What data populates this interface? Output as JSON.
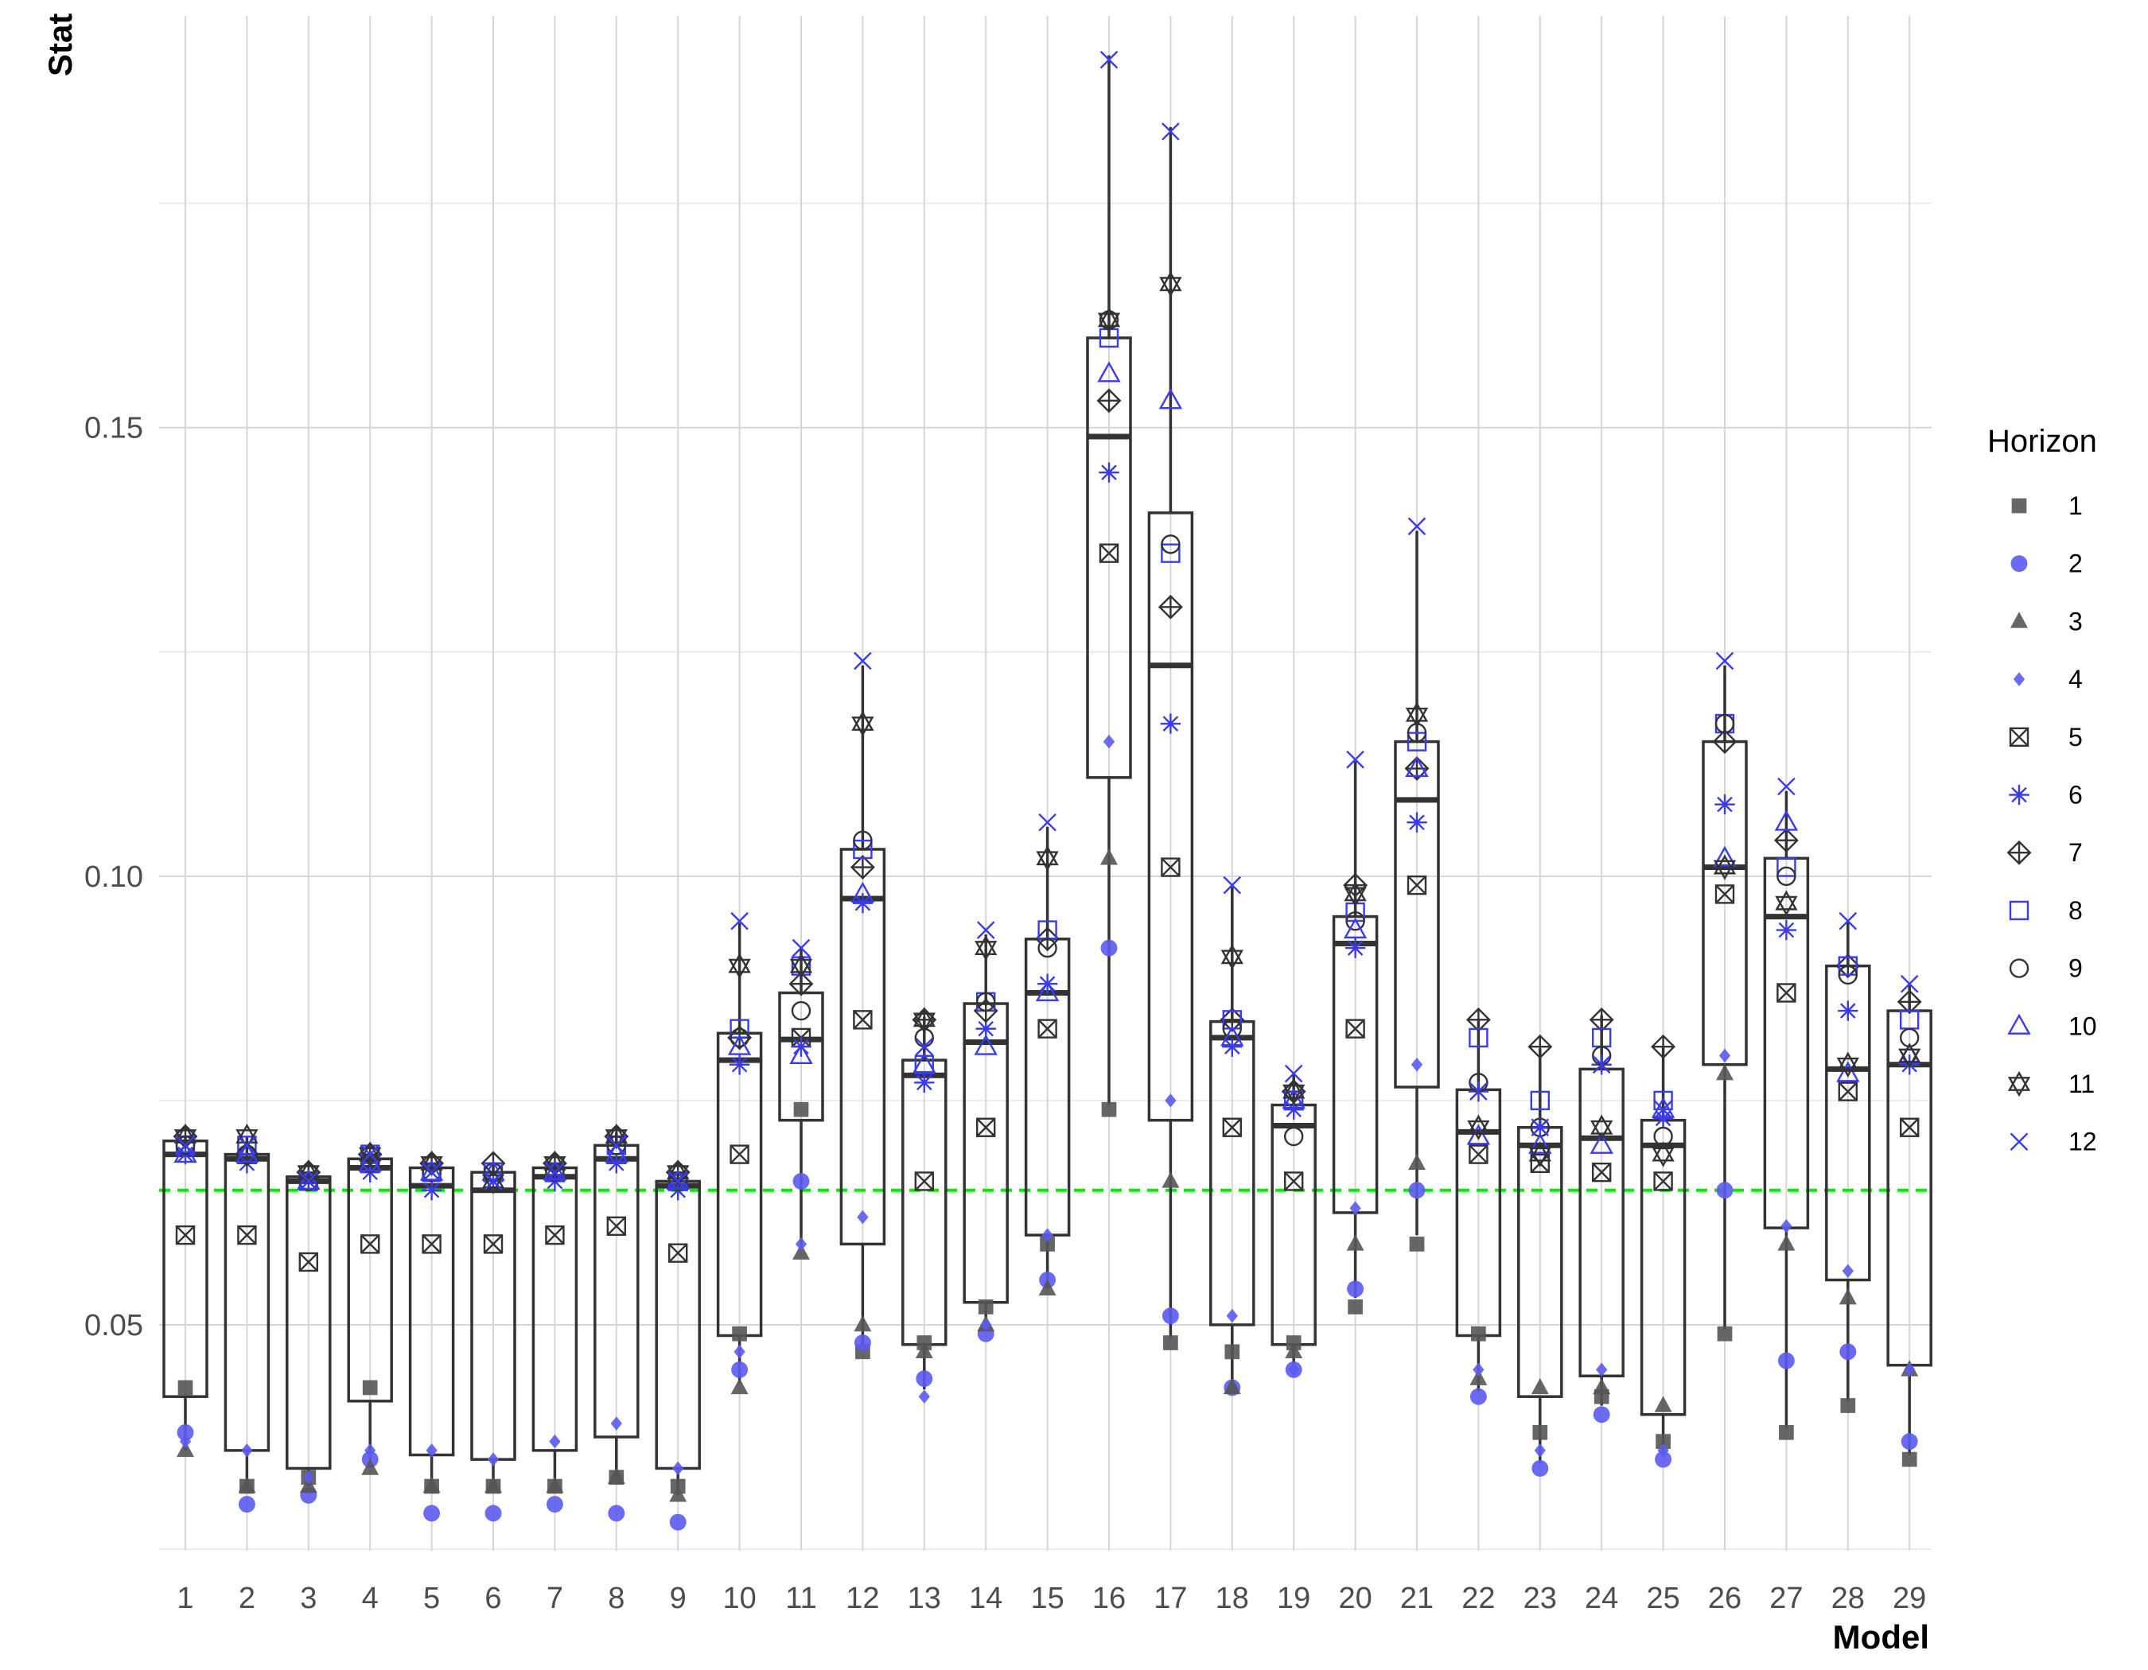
{
  "chart_data": {
    "type": "boxplot",
    "xlabel": "Model",
    "ylabel": "Stat",
    "ylim": [
      0.025,
      0.195
    ],
    "y_ticks": [
      0.05,
      0.1,
      0.15
    ],
    "y_tick_labels": [
      "0.05",
      "0.10",
      "0.15"
    ],
    "grid": true,
    "reference_line": {
      "y": 0.065,
      "color": "#00ee00",
      "style": "dashed"
    },
    "categories": [
      "1",
      "2",
      "3",
      "4",
      "5",
      "6",
      "7",
      "8",
      "9",
      "10",
      "11",
      "12",
      "13",
      "14",
      "15",
      "16",
      "17",
      "18",
      "19",
      "20",
      "21",
      "22",
      "23",
      "24",
      "25",
      "26",
      "27",
      "28",
      "29"
    ],
    "legend": {
      "title": "Horizon",
      "position": "right",
      "entries": [
        "1",
        "2",
        "3",
        "4",
        "5",
        "6",
        "7",
        "8",
        "9",
        "10",
        "11",
        "12"
      ]
    },
    "horizon_styles": [
      {
        "shape": "square-filled",
        "color": "#555555"
      },
      {
        "shape": "circle-filled",
        "color": "#5b5bf0"
      },
      {
        "shape": "triangle-filled",
        "color": "#555555"
      },
      {
        "shape": "diamond-filled",
        "color": "#5b5bf0"
      },
      {
        "shape": "square-x",
        "color": "#333333"
      },
      {
        "shape": "asterisk",
        "color": "#3a3aee"
      },
      {
        "shape": "diamond-plus",
        "color": "#333333"
      },
      {
        "shape": "square-open",
        "color": "#3a3aee"
      },
      {
        "shape": "circle-open",
        "color": "#333333"
      },
      {
        "shape": "triangle-open",
        "color": "#3a3aee"
      },
      {
        "shape": "star-of-david",
        "color": "#333333"
      },
      {
        "shape": "x",
        "color": "#3a3aee"
      }
    ],
    "boxes": [
      {
        "model": "1",
        "q1": 0.042,
        "median": 0.069,
        "q3": 0.0705,
        "min": 0.036,
        "max": 0.071
      },
      {
        "model": "2",
        "q1": 0.036,
        "median": 0.0685,
        "q3": 0.069,
        "min": 0.032,
        "max": 0.071
      },
      {
        "model": "3",
        "q1": 0.034,
        "median": 0.066,
        "q3": 0.0665,
        "min": 0.032,
        "max": 0.067
      },
      {
        "model": "4",
        "q1": 0.0415,
        "median": 0.0675,
        "q3": 0.0685,
        "min": 0.035,
        "max": 0.069
      },
      {
        "model": "5",
        "q1": 0.0355,
        "median": 0.0655,
        "q3": 0.0675,
        "min": 0.032,
        "max": 0.068
      },
      {
        "model": "6",
        "q1": 0.035,
        "median": 0.065,
        "q3": 0.067,
        "min": 0.032,
        "max": 0.068
      },
      {
        "model": "7",
        "q1": 0.036,
        "median": 0.0665,
        "q3": 0.0675,
        "min": 0.032,
        "max": 0.068
      },
      {
        "model": "8",
        "q1": 0.0375,
        "median": 0.0685,
        "q3": 0.07,
        "min": 0.033,
        "max": 0.0715
      },
      {
        "model": "9",
        "q1": 0.034,
        "median": 0.0655,
        "q3": 0.066,
        "min": 0.031,
        "max": 0.067
      },
      {
        "model": "10",
        "q1": 0.0488,
        "median": 0.0795,
        "q3": 0.0825,
        "min": 0.0435,
        "max": 0.0948
      },
      {
        "model": "11",
        "q1": 0.0728,
        "median": 0.0818,
        "q3": 0.087,
        "min": 0.0585,
        "max": 0.092
      },
      {
        "model": "12",
        "q1": 0.059,
        "median": 0.0975,
        "q3": 0.103,
        "min": 0.0475,
        "max": 0.1235
      },
      {
        "model": "13",
        "q1": 0.0478,
        "median": 0.0778,
        "q3": 0.0795,
        "min": 0.0428,
        "max": 0.0843
      },
      {
        "model": "14",
        "q1": 0.0525,
        "median": 0.0815,
        "q3": 0.0858,
        "min": 0.05,
        "max": 0.0935
      },
      {
        "model": "15",
        "q1": 0.06,
        "median": 0.087,
        "q3": 0.093,
        "min": 0.054,
        "max": 0.1055
      },
      {
        "model": "16",
        "q1": 0.111,
        "median": 0.149,
        "q3": 0.16,
        "min": 0.0745,
        "max": 0.1915
      },
      {
        "model": "17",
        "q1": 0.0728,
        "median": 0.1235,
        "q3": 0.1405,
        "min": 0.0485,
        "max": 0.1835
      },
      {
        "model": "18",
        "q1": 0.05,
        "median": 0.082,
        "q3": 0.0838,
        "min": 0.0425,
        "max": 0.0988
      },
      {
        "model": "19",
        "q1": 0.0478,
        "median": 0.0722,
        "q3": 0.0745,
        "min": 0.045,
        "max": 0.078
      },
      {
        "model": "20",
        "q1": 0.0625,
        "median": 0.0925,
        "q3": 0.0955,
        "min": 0.053,
        "max": 0.1128
      },
      {
        "model": "21",
        "q1": 0.0765,
        "median": 0.1085,
        "q3": 0.115,
        "min": 0.06,
        "max": 0.1385
      },
      {
        "model": "22",
        "q1": 0.0488,
        "median": 0.0715,
        "q3": 0.0762,
        "min": 0.0425,
        "max": 0.084
      },
      {
        "model": "23",
        "q1": 0.042,
        "median": 0.07,
        "q3": 0.072,
        "min": 0.0345,
        "max": 0.0808
      },
      {
        "model": "24",
        "q1": 0.0443,
        "median": 0.0708,
        "q3": 0.0785,
        "min": 0.041,
        "max": 0.0845
      },
      {
        "model": "25",
        "q1": 0.04,
        "median": 0.07,
        "q3": 0.0728,
        "min": 0.0355,
        "max": 0.081
      },
      {
        "model": "26",
        "q1": 0.079,
        "median": 0.101,
        "q3": 0.115,
        "min": 0.0495,
        "max": 0.1235
      },
      {
        "model": "27",
        "q1": 0.0608,
        "median": 0.0955,
        "q3": 0.102,
        "min": 0.0385,
        "max": 0.1095
      },
      {
        "model": "28",
        "q1": 0.055,
        "median": 0.0785,
        "q3": 0.09,
        "min": 0.0415,
        "max": 0.095
      },
      {
        "model": "29",
        "q1": 0.0455,
        "median": 0.079,
        "q3": 0.085,
        "min": 0.0355,
        "max": 0.088
      }
    ],
    "series": [
      {
        "name": "1",
        "values": [
          0.043,
          0.032,
          0.033,
          0.043,
          0.032,
          0.032,
          0.032,
          0.033,
          0.032,
          0.049,
          0.074,
          0.047,
          0.048,
          0.052,
          0.059,
          0.074,
          0.048,
          0.047,
          0.048,
          0.052,
          0.059,
          0.049,
          0.038,
          0.042,
          0.037,
          0.049,
          0.038,
          0.041,
          0.035
        ]
      },
      {
        "name": "2",
        "values": [
          0.038,
          0.03,
          0.031,
          0.035,
          0.029,
          0.029,
          0.03,
          0.029,
          0.028,
          0.045,
          0.066,
          0.048,
          0.044,
          0.049,
          0.055,
          0.092,
          0.051,
          0.043,
          0.045,
          0.054,
          0.065,
          0.042,
          0.034,
          0.04,
          0.035,
          0.065,
          0.046,
          0.047,
          0.037
        ]
      },
      {
        "name": "3",
        "values": [
          0.036,
          0.032,
          0.032,
          0.034,
          0.032,
          0.032,
          0.032,
          0.033,
          0.031,
          0.043,
          0.058,
          0.05,
          0.047,
          0.05,
          0.054,
          0.102,
          0.066,
          0.043,
          0.047,
          0.059,
          0.068,
          0.044,
          0.043,
          0.043,
          0.041,
          0.078,
          0.059,
          0.053,
          0.045
        ]
      },
      {
        "name": "4",
        "values": [
          0.037,
          0.036,
          0.033,
          0.036,
          0.036,
          0.035,
          0.037,
          0.039,
          0.034,
          0.047,
          0.059,
          0.062,
          0.042,
          0.05,
          0.06,
          0.115,
          0.075,
          0.051,
          0.045,
          0.063,
          0.079,
          0.045,
          0.036,
          0.045,
          0.036,
          0.08,
          0.061,
          0.056,
          0.045
        ]
      },
      {
        "name": "5",
        "values": [
          0.06,
          0.06,
          0.057,
          0.059,
          0.059,
          0.059,
          0.06,
          0.061,
          0.058,
          0.069,
          0.082,
          0.084,
          0.066,
          0.072,
          0.083,
          0.136,
          0.101,
          0.072,
          0.066,
          0.083,
          0.099,
          0.069,
          0.068,
          0.067,
          0.066,
          0.098,
          0.087,
          0.076,
          0.072
        ]
      },
      {
        "name": "6",
        "values": [
          0.069,
          0.068,
          0.066,
          0.067,
          0.065,
          0.066,
          0.066,
          0.068,
          0.065,
          0.079,
          0.081,
          0.097,
          0.077,
          0.083,
          0.088,
          0.145,
          0.117,
          0.081,
          0.074,
          0.092,
          0.106,
          0.076,
          0.072,
          0.079,
          0.073,
          0.108,
          0.094,
          0.085,
          0.079
        ]
      },
      {
        "name": "7",
        "values": [
          0.071,
          0.069,
          0.067,
          0.069,
          0.068,
          0.068,
          0.068,
          0.071,
          0.067,
          0.082,
          0.088,
          0.101,
          0.084,
          0.085,
          0.093,
          0.153,
          0.13,
          0.084,
          0.076,
          0.099,
          0.112,
          0.084,
          0.081,
          0.084,
          0.081,
          0.115,
          0.104,
          0.09,
          0.086
        ]
      },
      {
        "name": "8",
        "values": [
          0.07,
          0.07,
          0.066,
          0.069,
          0.067,
          0.067,
          0.067,
          0.07,
          0.066,
          0.083,
          0.09,
          0.103,
          0.079,
          0.086,
          0.094,
          0.16,
          0.136,
          0.084,
          0.075,
          0.096,
          0.115,
          0.082,
          0.075,
          0.082,
          0.075,
          0.117,
          0.101,
          0.09,
          0.084
        ]
      },
      {
        "name": "9",
        "values": [
          0.07,
          0.069,
          0.066,
          0.068,
          0.067,
          0.067,
          0.067,
          0.07,
          0.066,
          0.082,
          0.085,
          0.104,
          0.082,
          0.086,
          0.092,
          0.162,
          0.137,
          0.083,
          0.071,
          0.095,
          0.116,
          0.077,
          0.072,
          0.08,
          0.071,
          0.117,
          0.1,
          0.089,
          0.082
        ]
      },
      {
        "name": "10",
        "values": [
          0.069,
          0.069,
          0.066,
          0.068,
          0.067,
          0.067,
          0.067,
          0.069,
          0.066,
          0.081,
          0.08,
          0.098,
          0.079,
          0.081,
          0.087,
          0.156,
          0.153,
          0.082,
          0.075,
          0.094,
          0.112,
          0.071,
          0.07,
          0.07,
          0.074,
          0.102,
          0.106,
          0.078,
          0.08
        ]
      },
      {
        "name": "11",
        "values": [
          0.071,
          0.071,
          0.067,
          0.069,
          0.068,
          0.066,
          0.068,
          0.071,
          0.067,
          0.09,
          0.09,
          0.117,
          0.084,
          0.092,
          0.102,
          0.162,
          0.166,
          0.091,
          0.076,
          0.098,
          0.118,
          0.072,
          0.069,
          0.072,
          0.069,
          0.101,
          0.097,
          0.079,
          0.08
        ]
      },
      {
        "name": "12",
        "values": [
          0.07,
          0.07,
          0.066,
          0.069,
          0.067,
          0.066,
          0.067,
          0.07,
          0.066,
          0.095,
          0.092,
          0.124,
          0.081,
          0.094,
          0.106,
          0.191,
          0.183,
          0.099,
          0.078,
          0.113,
          0.139,
          0.076,
          0.072,
          0.079,
          0.074,
          0.124,
          0.11,
          0.095,
          0.088
        ]
      }
    ]
  }
}
